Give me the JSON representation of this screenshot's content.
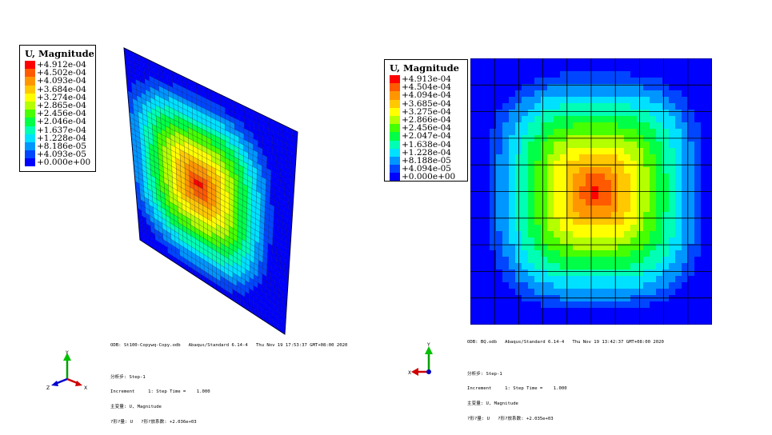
{
  "left_view": {
    "legend": {
      "title": "U, Magnitude",
      "labels": [
        "+4.912e-04",
        "+4.502e-04",
        "+4.093e-04",
        "+3.684e-04",
        "+3.274e-04",
        "+2.865e-04",
        "+2.456e-04",
        "+2.046e-04",
        "+1.637e-04",
        "+1.228e-04",
        "+8.186e-05",
        "+4.093e-05",
        "+0.000e+00"
      ],
      "colors": [
        "#ff0000",
        "#ff5a00",
        "#ff9600",
        "#ffc800",
        "#ffff00",
        "#b4ff00",
        "#46ff00",
        "#00ff46",
        "#00ffb4",
        "#00e1ff",
        "#0096ff",
        "#0046ff",
        "#0000ff"
      ]
    },
    "odb_line": "ODB: St100-Copywq-Copy.odb   Abaqus/Standard 6.14-4   Thu Nov 19 17:53:37 GMT+08:00 2020",
    "step_line": "分析步: Step-1",
    "increment_line": "Increment     1: Step Time =    1.000",
    "primary_var_line": "主变量: U, Magnitude",
    "deformed_var_line": "?形?量: U   ?形?放系数: +2.036e+03",
    "triad": {
      "y": "Y",
      "z": "Z",
      "x": "X"
    }
  },
  "right_view": {
    "legend": {
      "title": "U, Magnitude",
      "labels": [
        "+4.913e-04",
        "+4.504e-04",
        "+4.094e-04",
        "+3.685e-04",
        "+3.275e-04",
        "+2.866e-04",
        "+2.456e-04",
        "+2.047e-04",
        "+1.638e-04",
        "+1.228e-04",
        "+8.188e-05",
        "+4.094e-05",
        "+0.000e+00"
      ],
      "colors": [
        "#ff0000",
        "#ff5a00",
        "#ff9600",
        "#ffc800",
        "#ffff00",
        "#b4ff00",
        "#46ff00",
        "#00ff46",
        "#00ffb4",
        "#00e1ff",
        "#0096ff",
        "#0046ff",
        "#0000ff"
      ]
    },
    "odb_line": "ODB: BQ.odb   Abaqus/Standard 6.14-4   Thu Nov 19 13:42:37 GMT+08:00 2020",
    "step_line": "分析步: Step-1",
    "increment_line": "Increment     1: Step Time =    1.000",
    "primary_var_line": "主变量: U, Magnitude",
    "deformed_var_line": "?形?量: U   ?形?放系数: +2.035e+03",
    "triad": {
      "y": "Y",
      "x": "X"
    }
  }
}
